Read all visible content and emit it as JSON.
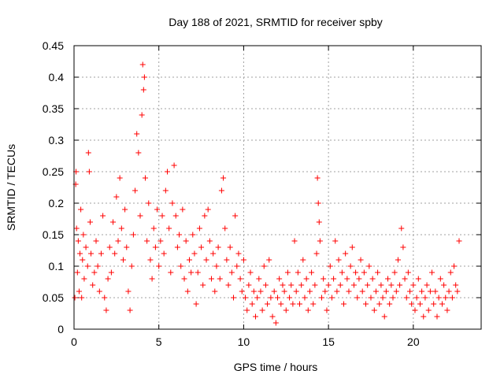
{
  "chart_data": {
    "type": "scatter",
    "title": "Day 188 of 2021, SRMTID for receiver spby",
    "xlabel": "GPS time / hours",
    "ylabel": "SRMTID / TECUs",
    "xlim": [
      0,
      24
    ],
    "ylim": [
      0,
      0.45
    ],
    "xticks": [
      0,
      5,
      10,
      15,
      20
    ],
    "xtick_labels": [
      "0",
      "5",
      "10",
      "15",
      "20"
    ],
    "yticks": [
      0,
      0.05,
      0.1,
      0.15,
      0.2,
      0.25,
      0.3,
      0.35,
      0.4,
      0.45
    ],
    "ytick_labels": [
      "0",
      "0.05",
      "0.1",
      "0.15",
      "0.2",
      "0.25",
      "0.3",
      "0.35",
      "0.4",
      "0.45"
    ],
    "grid": true,
    "marker": "+",
    "series": [
      {
        "name": "SRMTID",
        "color": "#ff0000",
        "points": [
          [
            0.05,
            0.05
          ],
          [
            0.1,
            0.23
          ],
          [
            0.12,
            0.25
          ],
          [
            0.15,
            0.16
          ],
          [
            0.2,
            0.09
          ],
          [
            0.25,
            0.14
          ],
          [
            0.3,
            0.06
          ],
          [
            0.35,
            0.12
          ],
          [
            0.4,
            0.19
          ],
          [
            0.45,
            0.05
          ],
          [
            0.5,
            0.11
          ],
          [
            0.55,
            0.15
          ],
          [
            0.6,
            0.08
          ],
          [
            0.7,
            0.13
          ],
          [
            0.8,
            0.1
          ],
          [
            0.85,
            0.28
          ],
          [
            0.9,
            0.25
          ],
          [
            0.95,
            0.17
          ],
          [
            1.0,
            0.12
          ],
          [
            1.1,
            0.07
          ],
          [
            1.2,
            0.09
          ],
          [
            1.3,
            0.14
          ],
          [
            1.4,
            0.1
          ],
          [
            1.5,
            0.06
          ],
          [
            1.6,
            0.12
          ],
          [
            1.7,
            0.18
          ],
          [
            1.8,
            0.05
          ],
          [
            1.9,
            0.03
          ],
          [
            2.0,
            0.08
          ],
          [
            2.1,
            0.13
          ],
          [
            2.2,
            0.09
          ],
          [
            2.3,
            0.17
          ],
          [
            2.4,
            0.12
          ],
          [
            2.5,
            0.21
          ],
          [
            2.6,
            0.14
          ],
          [
            2.7,
            0.24
          ],
          [
            2.8,
            0.16
          ],
          [
            2.9,
            0.11
          ],
          [
            3.0,
            0.19
          ],
          [
            3.1,
            0.13
          ],
          [
            3.2,
            0.06
          ],
          [
            3.3,
            0.03
          ],
          [
            3.4,
            0.1
          ],
          [
            3.5,
            0.15
          ],
          [
            3.6,
            0.22
          ],
          [
            3.7,
            0.31
          ],
          [
            3.8,
            0.28
          ],
          [
            3.9,
            0.18
          ],
          [
            4.0,
            0.34
          ],
          [
            4.05,
            0.42
          ],
          [
            4.1,
            0.38
          ],
          [
            4.15,
            0.4
          ],
          [
            4.2,
            0.24
          ],
          [
            4.3,
            0.14
          ],
          [
            4.4,
            0.2
          ],
          [
            4.5,
            0.11
          ],
          [
            4.6,
            0.08
          ],
          [
            4.7,
            0.16
          ],
          [
            4.8,
            0.13
          ],
          [
            4.9,
            0.19
          ],
          [
            5.0,
            0.1
          ],
          [
            5.1,
            0.14
          ],
          [
            5.2,
            0.18
          ],
          [
            5.3,
            0.12
          ],
          [
            5.4,
            0.22
          ],
          [
            5.5,
            0.25
          ],
          [
            5.6,
            0.16
          ],
          [
            5.7,
            0.09
          ],
          [
            5.8,
            0.2
          ],
          [
            5.9,
            0.26
          ],
          [
            6.0,
            0.18
          ],
          [
            6.1,
            0.13
          ],
          [
            6.2,
            0.15
          ],
          [
            6.3,
            0.1
          ],
          [
            6.4,
            0.19
          ],
          [
            6.5,
            0.08
          ],
          [
            6.6,
            0.14
          ],
          [
            6.7,
            0.06
          ],
          [
            6.8,
            0.11
          ],
          [
            6.9,
            0.09
          ],
          [
            7.0,
            0.15
          ],
          [
            7.1,
            0.12
          ],
          [
            7.2,
            0.04
          ],
          [
            7.3,
            0.09
          ],
          [
            7.4,
            0.16
          ],
          [
            7.5,
            0.13
          ],
          [
            7.6,
            0.07
          ],
          [
            7.7,
            0.18
          ],
          [
            7.8,
            0.11
          ],
          [
            7.9,
            0.19
          ],
          [
            8.0,
            0.14
          ],
          [
            8.1,
            0.08
          ],
          [
            8.2,
            0.12
          ],
          [
            8.3,
            0.06
          ],
          [
            8.4,
            0.1
          ],
          [
            8.5,
            0.13
          ],
          [
            8.6,
            0.08
          ],
          [
            8.7,
            0.22
          ],
          [
            8.8,
            0.24
          ],
          [
            8.9,
            0.16
          ],
          [
            9.0,
            0.11
          ],
          [
            9.1,
            0.07
          ],
          [
            9.2,
            0.13
          ],
          [
            9.3,
            0.09
          ],
          [
            9.4,
            0.05
          ],
          [
            9.5,
            0.18
          ],
          [
            9.6,
            0.1
          ],
          [
            9.7,
            0.12
          ],
          [
            9.8,
            0.08
          ],
          [
            9.9,
            0.06
          ],
          [
            10.0,
            0.11
          ],
          [
            10.1,
            0.05
          ],
          [
            10.2,
            0.03
          ],
          [
            10.3,
            0.07
          ],
          [
            10.4,
            0.09
          ],
          [
            10.5,
            0.04
          ],
          [
            10.6,
            0.06
          ],
          [
            10.7,
            0.02
          ],
          [
            10.8,
            0.05
          ],
          [
            10.9,
            0.08
          ],
          [
            11.0,
            0.06
          ],
          [
            11.1,
            0.03
          ],
          [
            11.2,
            0.1
          ],
          [
            11.3,
            0.07
          ],
          [
            11.4,
            0.04
          ],
          [
            11.5,
            0.11
          ],
          [
            11.6,
            0.05
          ],
          [
            11.7,
            0.02
          ],
          [
            11.8,
            0.06
          ],
          [
            11.9,
            0.01
          ],
          [
            12.0,
            0.05
          ],
          [
            12.1,
            0.08
          ],
          [
            12.2,
            0.04
          ],
          [
            12.3,
            0.07
          ],
          [
            12.4,
            0.06
          ],
          [
            12.5,
            0.03
          ],
          [
            12.6,
            0.09
          ],
          [
            12.7,
            0.05
          ],
          [
            12.8,
            0.07
          ],
          [
            12.9,
            0.04
          ],
          [
            13.0,
            0.14
          ],
          [
            13.1,
            0.06
          ],
          [
            13.2,
            0.09
          ],
          [
            13.3,
            0.04
          ],
          [
            13.4,
            0.07
          ],
          [
            13.5,
            0.11
          ],
          [
            13.6,
            0.05
          ],
          [
            13.7,
            0.08
          ],
          [
            13.8,
            0.03
          ],
          [
            13.9,
            0.06
          ],
          [
            14.0,
            0.09
          ],
          [
            14.1,
            0.04
          ],
          [
            14.2,
            0.07
          ],
          [
            14.3,
            0.12
          ],
          [
            14.35,
            0.24
          ],
          [
            14.4,
            0.2
          ],
          [
            14.45,
            0.17
          ],
          [
            14.5,
            0.14
          ],
          [
            14.6,
            0.05
          ],
          [
            14.7,
            0.08
          ],
          [
            14.8,
            0.06
          ],
          [
            14.9,
            0.03
          ],
          [
            15.0,
            0.07
          ],
          [
            15.1,
            0.1
          ],
          [
            15.2,
            0.05
          ],
          [
            15.3,
            0.08
          ],
          [
            15.4,
            0.14
          ],
          [
            15.5,
            0.06
          ],
          [
            15.6,
            0.11
          ],
          [
            15.7,
            0.07
          ],
          [
            15.8,
            0.09
          ],
          [
            15.9,
            0.04
          ],
          [
            16.0,
            0.12
          ],
          [
            16.1,
            0.08
          ],
          [
            16.2,
            0.06
          ],
          [
            16.3,
            0.1
          ],
          [
            16.4,
            0.13
          ],
          [
            16.5,
            0.07
          ],
          [
            16.6,
            0.09
          ],
          [
            16.7,
            0.05
          ],
          [
            16.8,
            0.08
          ],
          [
            16.9,
            0.11
          ],
          [
            17.0,
            0.06
          ],
          [
            17.1,
            0.09
          ],
          [
            17.2,
            0.04
          ],
          [
            17.3,
            0.07
          ],
          [
            17.4,
            0.1
          ],
          [
            17.5,
            0.05
          ],
          [
            17.6,
            0.08
          ],
          [
            17.7,
            0.03
          ],
          [
            17.8,
            0.06
          ],
          [
            17.9,
            0.09
          ],
          [
            18.0,
            0.04
          ],
          [
            18.1,
            0.07
          ],
          [
            18.2,
            0.05
          ],
          [
            18.3,
            0.02
          ],
          [
            18.4,
            0.06
          ],
          [
            18.5,
            0.08
          ],
          [
            18.6,
            0.04
          ],
          [
            18.7,
            0.07
          ],
          [
            18.8,
            0.05
          ],
          [
            18.9,
            0.09
          ],
          [
            19.0,
            0.06
          ],
          [
            19.1,
            0.11
          ],
          [
            19.2,
            0.07
          ],
          [
            19.3,
            0.16
          ],
          [
            19.4,
            0.13
          ],
          [
            19.5,
            0.08
          ],
          [
            19.6,
            0.05
          ],
          [
            19.7,
            0.09
          ],
          [
            19.8,
            0.06
          ],
          [
            19.9,
            0.04
          ],
          [
            20.0,
            0.07
          ],
          [
            20.1,
            0.03
          ],
          [
            20.2,
            0.05
          ],
          [
            20.3,
            0.08
          ],
          [
            20.4,
            0.04
          ],
          [
            20.5,
            0.06
          ],
          [
            20.6,
            0.02
          ],
          [
            20.7,
            0.05
          ],
          [
            20.8,
            0.07
          ],
          [
            20.9,
            0.03
          ],
          [
            21.0,
            0.06
          ],
          [
            21.1,
            0.09
          ],
          [
            21.2,
            0.04
          ],
          [
            21.3,
            0.06
          ],
          [
            21.4,
            0.02
          ],
          [
            21.5,
            0.05
          ],
          [
            21.6,
            0.08
          ],
          [
            21.7,
            0.04
          ],
          [
            21.8,
            0.07
          ],
          [
            21.9,
            0.05
          ],
          [
            22.0,
            0.03
          ],
          [
            22.1,
            0.06
          ],
          [
            22.2,
            0.09
          ],
          [
            22.3,
            0.05
          ],
          [
            22.4,
            0.1
          ],
          [
            22.5,
            0.07
          ],
          [
            22.6,
            0.06
          ],
          [
            22.7,
            0.14
          ]
        ]
      }
    ]
  }
}
